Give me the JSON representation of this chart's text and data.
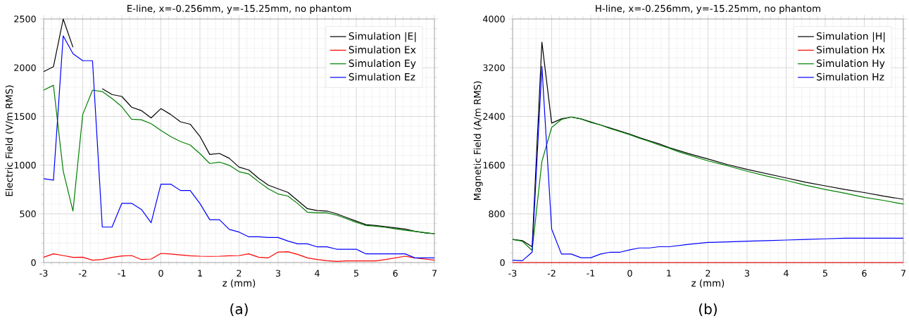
{
  "chart_data": [
    {
      "type": "line",
      "title": "E-line, x=-0.256mm, y=-15.25mm, no phantom",
      "xlabel": "z (mm)",
      "ylabel": "Electric Field (V/m RMS)",
      "x": [
        -3,
        -2.75,
        -2.5,
        -2.25,
        -2,
        -1.75,
        -1.5,
        -1.25,
        -1,
        -0.75,
        -0.5,
        -0.25,
        0,
        0.25,
        0.5,
        0.75,
        1,
        1.25,
        1.5,
        1.75,
        2,
        2.25,
        2.5,
        2.75,
        3,
        3.25,
        3.5,
        3.75,
        4,
        4.25,
        4.5,
        4.75,
        5,
        5.25,
        5.5,
        5.75,
        6,
        6.25,
        6.5,
        6.75,
        7
      ],
      "series": [
        {
          "name": "Simulation |E|",
          "color": "#000000",
          "values": [
            1960,
            2010,
            2500,
            2210,
            null,
            null,
            1785,
            1725,
            1705,
            1595,
            1560,
            1485,
            1580,
            1520,
            1445,
            1420,
            1295,
            1110,
            1120,
            1070,
            980,
            950,
            865,
            795,
            757,
            721,
            637,
            553,
            534,
            529,
            500,
            462,
            425,
            389,
            380,
            368,
            356,
            344,
            320,
            305,
            296
          ]
        },
        {
          "name": "Simulation Ex",
          "color": "#ff0000",
          "values": [
            55,
            89,
            72,
            53,
            55,
            24,
            31,
            53,
            67,
            72,
            31,
            36,
            94,
            87,
            79,
            70,
            65,
            63,
            65,
            70,
            72,
            89,
            55,
            48,
            108,
            111,
            84,
            48,
            31,
            19,
            12,
            17,
            17,
            17,
            17,
            31,
            48,
            65,
            48,
            36,
            24
          ]
        },
        {
          "name": "Simulation Ey",
          "color": "#008000",
          "values": [
            1770,
            1820,
            938,
            529,
            1520,
            1770,
            1755,
            1683,
            1600,
            1471,
            1466,
            1425,
            1356,
            1293,
            1243,
            1207,
            1118,
            1017,
            1031,
            998,
            933,
            909,
            830,
            757,
            704,
            683,
            606,
            517,
            510,
            510,
            486,
            450,
            413,
            380,
            373,
            361,
            346,
            332,
            320,
            308,
            296
          ]
        },
        {
          "name": "Simulation Ez",
          "color": "#0000ff",
          "values": [
            860,
            846,
            2327,
            2144,
            2072,
            2072,
            365,
            365,
            608,
            608,
            546,
            409,
            805,
            805,
            740,
            740,
            606,
            440,
            440,
            340,
            313,
            264,
            264,
            257,
            257,
            221,
            192,
            192,
            161,
            161,
            137,
            137,
            137,
            89,
            89,
            89,
            89,
            89,
            48,
            48,
            48
          ]
        }
      ],
      "xlim": [
        -3,
        7
      ],
      "ylim": [
        0,
        2500
      ],
      "xticks": [
        -3,
        -2,
        -1,
        0,
        1,
        2,
        3,
        4,
        5,
        6,
        7
      ],
      "yticks": [
        0,
        500,
        1000,
        1500,
        2000,
        2500
      ],
      "grid": true,
      "legend": "top right",
      "annotations": [
        "(a)"
      ]
    },
    {
      "type": "line",
      "title": "H-line, x=-0.256mm, y=-15.25mm, no phantom",
      "xlabel": "z (mm)",
      "ylabel": "Magnetic Field (A/m RMS)",
      "x": [
        -3,
        -2.75,
        -2.5,
        -2.25,
        -2,
        -1.75,
        -1.5,
        -1.25,
        -1,
        -0.75,
        -0.5,
        -0.25,
        0,
        0.25,
        0.5,
        0.75,
        1,
        1.25,
        1.5,
        2,
        2.5,
        3,
        3.5,
        4,
        4.5,
        5,
        5.5,
        6,
        6.5,
        7
      ],
      "series": [
        {
          "name": "Simulation |H|",
          "color": "#000000",
          "values": [
            380,
            360,
            260,
            3620,
            2290,
            2360,
            2390,
            2360,
            2310,
            2260,
            2210,
            2160,
            2110,
            2050,
            2000,
            1950,
            1890,
            1840,
            1790,
            1700,
            1610,
            1530,
            1460,
            1390,
            1320,
            1260,
            1200,
            1150,
            1090,
            1040
          ]
        },
        {
          "name": "Simulation Hx",
          "color": "#ff0000",
          "values": [
            0,
            0,
            0,
            0,
            0,
            0,
            0,
            0,
            0,
            0,
            0,
            0,
            0,
            0,
            0,
            0,
            0,
            0,
            0,
            0,
            0,
            0,
            0,
            0,
            0,
            0,
            0,
            0,
            0,
            0
          ]
        },
        {
          "name": "Simulation Hy",
          "color": "#008000",
          "values": [
            380,
            350,
            200,
            1660,
            2220,
            2350,
            2390,
            2360,
            2300,
            2260,
            2200,
            2150,
            2100,
            2040,
            1990,
            1930,
            1880,
            1820,
            1770,
            1670,
            1590,
            1500,
            1420,
            1350,
            1270,
            1200,
            1140,
            1070,
            1020,
            960
          ]
        },
        {
          "name": "Simulation Hz",
          "color": "#0000ff",
          "values": [
            40,
            30,
            170,
            3220,
            550,
            140,
            140,
            80,
            80,
            140,
            170,
            170,
            210,
            240,
            240,
            260,
            260,
            280,
            300,
            330,
            340,
            350,
            360,
            370,
            380,
            390,
            400,
            400,
            400,
            400
          ]
        }
      ],
      "xlim": [
        -3,
        7
      ],
      "ylim": [
        0,
        4000
      ],
      "xticks": [
        -3,
        -2,
        -1,
        0,
        1,
        2,
        3,
        4,
        5,
        6,
        7
      ],
      "yticks": [
        0,
        800,
        1600,
        2400,
        3200,
        4000
      ],
      "grid": true,
      "legend": "top right",
      "annotations": [
        "(b)"
      ]
    }
  ]
}
